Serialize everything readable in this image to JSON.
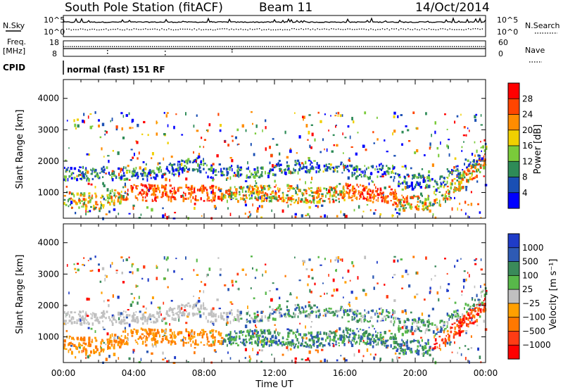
{
  "header": {
    "station": "South Pole Station (fitACF)",
    "beam": "Beam 11",
    "date": "14/Oct/2014"
  },
  "aux_panels": {
    "nsky_label": "N.Sky",
    "nsky_ticks": [
      "10^5",
      "10^0"
    ],
    "nsearch_label": "N.Search",
    "nsearch_ticks": [
      "10^5",
      "10^0"
    ],
    "freq_label_1": "Freq.",
    "freq_label_2": "[MHz]",
    "freq_ticks": [
      "18",
      "8"
    ],
    "nave_label": "Nave",
    "nave_ticks": [
      "60",
      "0"
    ],
    "cpid_label": "CPID",
    "cpid_value": "normal (fast) 151 RF"
  },
  "chart_data": [
    {
      "type": "heatmap",
      "quantity": "Power",
      "ylabel": "Slant Range [km]",
      "yticks": [
        1000,
        2000,
        3000,
        4000
      ],
      "ylim": [
        180,
        4600
      ],
      "xlim_hours": [
        0,
        24
      ],
      "colorbar_title": "Power [dB]",
      "colorbar_ticks": [
        "4",
        "8",
        "12",
        "16",
        "20",
        "24",
        "28"
      ],
      "colorbar_colors": [
        "#0000ff",
        "#1a4fb4",
        "#2e8b57",
        "#7acb3a",
        "#f0d000",
        "#ff8c00",
        "#ff4500",
        "#ff0000"
      ]
    },
    {
      "type": "heatmap",
      "quantity": "Velocity",
      "ylabel": "Slant Range [km]",
      "yticks": [
        1000,
        2000,
        3000,
        4000
      ],
      "ylim": [
        180,
        4600
      ],
      "xlim_hours": [
        0,
        24
      ],
      "xlabel": "Time UT",
      "xticks": [
        "00:00",
        "04:00",
        "08:00",
        "12:00",
        "16:00",
        "20:00",
        "00:00"
      ],
      "colorbar_title": "Velocity [m s⁻¹]",
      "colorbar_ticks": [
        "1000",
        "500",
        "100",
        "25",
        "−25",
        "−100",
        "−500",
        "−1000"
      ],
      "colorbar_colors": [
        "#1f3cc8",
        "#2e5ab4",
        "#3a8a5a",
        "#58b84a",
        "#c0c0c0",
        "#ffa000",
        "#ff7800",
        "#ff3c14",
        "#ff0000"
      ]
    }
  ]
}
